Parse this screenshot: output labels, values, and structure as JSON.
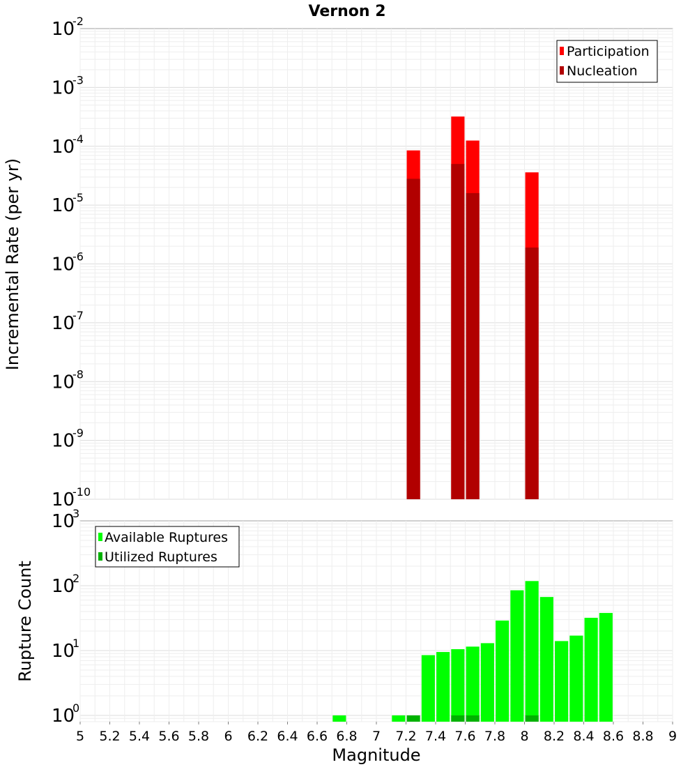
{
  "chart_data": [
    {
      "type": "bar",
      "title": "Vernon 2",
      "xlabel": "",
      "ylabel": "Incremental Rate (per yr)",
      "yscale": "log",
      "xlim": [
        5,
        9
      ],
      "ylim_exp": [
        -10,
        -2
      ],
      "bar_width": 0.09,
      "legend_position": "top-right",
      "series": [
        {
          "name": "Participation",
          "color": "#ff0000",
          "x": [
            7.25,
            7.55,
            7.65,
            8.05
          ],
          "values": [
            8.5e-05,
            0.00032,
            0.000125,
            3.6e-05
          ]
        },
        {
          "name": "Nucleation",
          "color": "#b10000",
          "x": [
            7.25,
            7.55,
            7.65,
            8.05
          ],
          "values": [
            2.8e-05,
            5e-05,
            1.6e-05,
            1.9e-06
          ]
        }
      ]
    },
    {
      "type": "bar",
      "title": "",
      "xlabel": "Magnitude",
      "ylabel": "Rupture Count",
      "yscale": "log",
      "xlim": [
        5,
        9
      ],
      "ylim_exp": [
        0,
        3
      ],
      "ymin": 0.8,
      "bar_width": 0.09,
      "legend_position": "top-left",
      "series": [
        {
          "name": "Available Ruptures",
          "color": "#00ff00",
          "x": [
            6.75,
            7.15,
            7.35,
            7.45,
            7.55,
            7.65,
            7.75,
            7.85,
            7.95,
            8.05,
            8.15,
            8.25,
            8.35,
            8.45,
            8.55
          ],
          "values": [
            1,
            1,
            8.5,
            9.5,
            10.5,
            11.5,
            13,
            29,
            85,
            118,
            67,
            14,
            17,
            32,
            38
          ]
        },
        {
          "name": "Utilized Ruptures",
          "color": "#00b200",
          "x": [
            7.25,
            7.55,
            7.65,
            8.05
          ],
          "values": [
            1,
            1,
            1,
            1
          ]
        }
      ]
    }
  ],
  "x_ticks": [
    "5",
    "5.2",
    "5.4",
    "5.6",
    "5.8",
    "6",
    "6.2",
    "6.4",
    "6.6",
    "6.8",
    "7",
    "7.2",
    "7.4",
    "7.6",
    "7.8",
    "8",
    "8.2",
    "8.4",
    "8.6",
    "8.8",
    "9"
  ],
  "top_y_ticks": [
    {
      "base": "10",
      "exp": "-2"
    },
    {
      "base": "10",
      "exp": "-3"
    },
    {
      "base": "10",
      "exp": "-4"
    },
    {
      "base": "10",
      "exp": "-5"
    },
    {
      "base": "10",
      "exp": "-6"
    },
    {
      "base": "10",
      "exp": "-7"
    },
    {
      "base": "10",
      "exp": "-8"
    },
    {
      "base": "10",
      "exp": "-9"
    },
    {
      "base": "10",
      "exp": "-10"
    }
  ],
  "bottom_y_ticks": [
    {
      "base": "10",
      "exp": "3"
    },
    {
      "base": "10",
      "exp": "2"
    },
    {
      "base": "10",
      "exp": "1"
    },
    {
      "base": "10",
      "exp": "0"
    }
  ]
}
